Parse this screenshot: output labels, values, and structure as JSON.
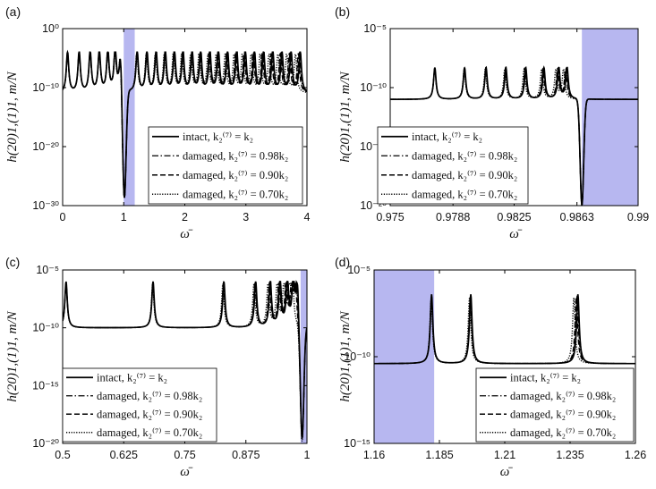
{
  "figure": {
    "colors": {
      "band": "#b7b7f0",
      "line": "#000000",
      "axis": "#000000"
    },
    "legend_entries": [
      {
        "text": "intact, k₂⁽⁷⁾ = k₂",
        "style": "solid"
      },
      {
        "text": "damaged, k₂⁽⁷⁾ = 0.98k₂",
        "style": "dashdot"
      },
      {
        "text": "damaged, k₂⁽⁷⁾ = 0.90k₂",
        "style": "dashed"
      },
      {
        "text": "damaged, k₂⁽⁷⁾ = 0.70k₂",
        "style": "dotted"
      }
    ]
  },
  "chart_data": [
    {
      "panel": "(a)",
      "type": "line",
      "xlabel": "ω̄",
      "ylabel": "h(20)1,(1)1, m/N",
      "xlim": [
        0,
        4
      ],
      "ylim_exp": [
        -30,
        0
      ],
      "xticks": [
        0,
        1,
        2,
        3,
        4
      ],
      "xtick_labels": [
        "0",
        "1",
        "2",
        "3",
        "4"
      ],
      "yticks_exp": [
        0,
        -10,
        -20,
        -30
      ],
      "ytick_labels": [
        "10⁰",
        "10⁻¹⁰",
        "10⁻²⁰",
        "10⁻³⁰"
      ],
      "shaded_band": [
        1.0,
        1.18
      ],
      "peak_freqs": [
        0.08,
        0.27,
        0.45,
        0.6,
        0.74,
        0.86,
        0.95,
        1.22,
        1.38,
        1.53,
        1.68,
        1.83,
        1.97,
        2.12,
        2.26,
        2.41,
        2.55,
        2.7,
        2.85,
        2.99,
        3.14,
        3.29,
        3.44,
        3.59,
        3.74,
        3.89
      ],
      "baseline_exp": -11,
      "peak_top_exp": -4,
      "antiresonance_freq": 1.01,
      "antiresonance_exp": -30,
      "series": [
        {
          "name": "intact",
          "style": "solid"
        },
        {
          "name": "damaged 0.98k2",
          "style": "dashdot"
        },
        {
          "name": "damaged 0.90k2",
          "style": "dashed"
        },
        {
          "name": "damaged 0.70k2",
          "style": "dotted"
        }
      ]
    },
    {
      "panel": "(b)",
      "type": "line",
      "xlabel": "ω̄",
      "ylabel": "h(20)1,(1)1, m/N",
      "xlim": [
        0.975,
        0.99
      ],
      "ylim_exp": [
        -20,
        -5
      ],
      "xticks": [
        0.975,
        0.9788,
        0.9825,
        0.9863,
        0.99
      ],
      "xtick_labels": [
        "0.975",
        "0.9788",
        "0.9825",
        "0.9863",
        "0.99"
      ],
      "yticks_exp": [
        -5,
        -10,
        -15,
        -20
      ],
      "ytick_labels": [
        "10⁻⁵",
        "10⁻¹⁰",
        "10⁻¹⁵",
        "10⁻²⁰"
      ],
      "shaded_band": [
        0.9866,
        0.99
      ],
      "peak_freqs": [
        0.9777,
        0.9795,
        0.9808,
        0.982,
        0.9832,
        0.9843,
        0.9852,
        0.9857
      ],
      "baseline_exp": -11,
      "peak_top_exp": -8.3,
      "antiresonance_freq": 0.9866,
      "antiresonance_exp": -20,
      "series": [
        {
          "name": "intact",
          "style": "solid"
        },
        {
          "name": "damaged 0.98k2",
          "style": "dashdot"
        },
        {
          "name": "damaged 0.90k2",
          "style": "dashed"
        },
        {
          "name": "damaged 0.70k2",
          "style": "dotted"
        }
      ]
    },
    {
      "panel": "(c)",
      "type": "line",
      "xlabel": "ω̄",
      "ylabel": "h(20)1,(1)1, m/N",
      "xlim": [
        0.5,
        1
      ],
      "ylim_exp": [
        -20,
        -5
      ],
      "xticks": [
        0.5,
        0.625,
        0.75,
        0.875,
        1
      ],
      "xtick_labels": [
        "0.5",
        "0.625",
        "0.75",
        "0.875",
        "1"
      ],
      "yticks_exp": [
        -5,
        -10,
        -15,
        -20
      ],
      "ytick_labels": [
        "10⁻⁵",
        "10⁻¹⁰",
        "10⁻¹⁵",
        "10⁻²⁰"
      ],
      "shaded_band": [
        0.987,
        1.0
      ],
      "peak_freqs": [
        0.507,
        0.685,
        0.83,
        0.895,
        0.925,
        0.945,
        0.96,
        0.972,
        0.98
      ],
      "baseline_exp": -10,
      "peak_top_exp": -6,
      "antiresonance_freq": 0.99,
      "antiresonance_exp": -20,
      "series": [
        {
          "name": "intact",
          "style": "solid"
        },
        {
          "name": "damaged 0.98k2",
          "style": "dashdot"
        },
        {
          "name": "damaged 0.90k2",
          "style": "dashed"
        },
        {
          "name": "damaged 0.70k2",
          "style": "dotted"
        }
      ]
    },
    {
      "panel": "(d)",
      "type": "line",
      "xlabel": "ω̄",
      "ylabel": "h(20)1,(1)1, m/N",
      "xlim": [
        1.16,
        1.26
      ],
      "ylim_exp": [
        -15,
        -5
      ],
      "xticks": [
        1.16,
        1.185,
        1.21,
        1.235,
        1.26
      ],
      "xtick_labels": [
        "1.16",
        "1.185",
        "1.21",
        "1.235",
        "1.26"
      ],
      "yticks_exp": [
        -5,
        -10,
        -15
      ],
      "ytick_labels": [
        "10⁻⁵",
        "10⁻¹⁰",
        "10⁻¹⁵"
      ],
      "shaded_band": [
        1.16,
        1.183
      ],
      "peak_freqs": [
        1.182,
        1.197,
        1.238
      ],
      "baseline_exp": -10.4,
      "peak_top_exp": -6.4,
      "antiresonance_freq": null,
      "antiresonance_exp": null,
      "series": [
        {
          "name": "intact",
          "style": "solid"
        },
        {
          "name": "damaged 0.98k2",
          "style": "dashdot"
        },
        {
          "name": "damaged 0.90k2",
          "style": "dashed"
        },
        {
          "name": "damaged 0.70k2",
          "style": "dotted"
        }
      ]
    }
  ]
}
